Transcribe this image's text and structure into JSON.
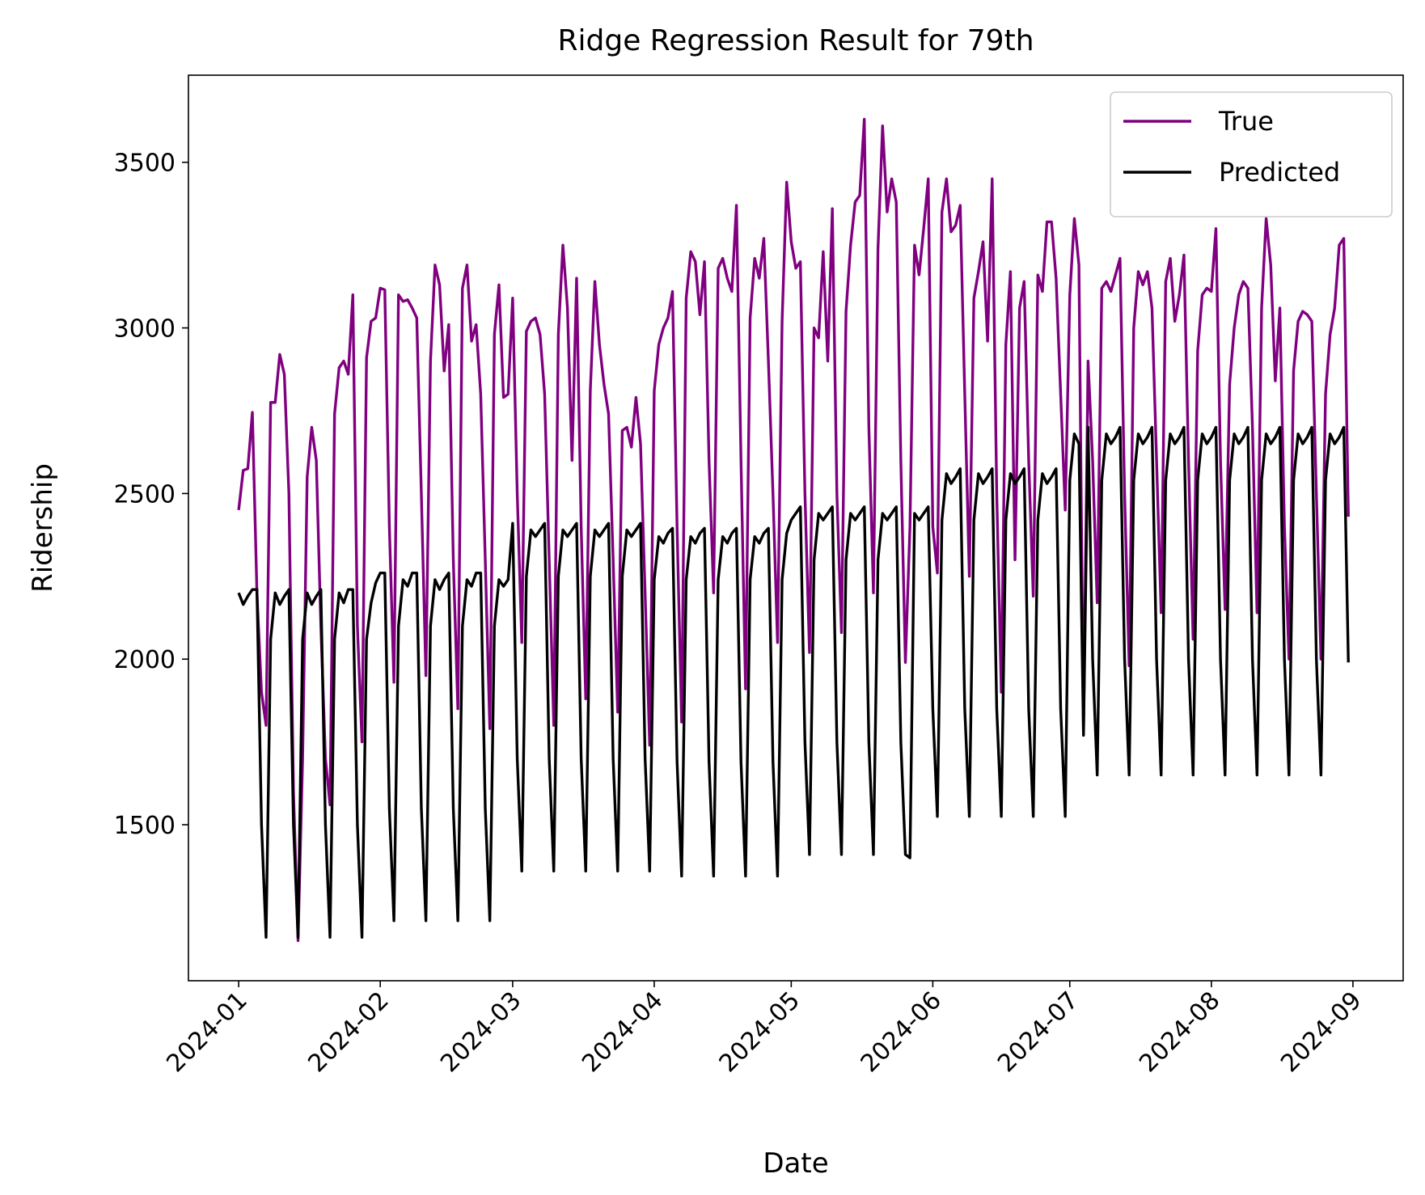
{
  "chart_data": {
    "type": "line",
    "title": "Ridge Regression Result for 79th",
    "x_label": "Date",
    "y_label": "Ridership",
    "x": [
      0,
      1,
      2,
      3,
      4,
      5,
      6,
      7,
      8,
      9,
      10,
      11,
      12,
      13,
      14,
      15,
      16,
      17,
      18,
      19,
      20,
      21,
      22,
      23,
      24,
      25,
      26,
      27,
      28,
      29,
      30,
      31,
      32,
      33,
      34,
      35,
      36,
      37,
      38,
      39,
      40,
      41,
      42,
      43,
      44,
      45,
      46,
      47,
      48,
      49,
      50,
      51,
      52,
      53,
      54,
      55,
      56,
      57,
      58,
      59,
      60,
      61,
      62,
      63,
      64,
      65,
      66,
      67,
      68,
      69,
      70,
      71,
      72,
      73,
      74,
      75,
      76,
      77,
      78,
      79,
      80,
      81,
      82,
      83,
      84,
      85,
      86,
      87,
      88,
      89,
      90,
      91,
      92,
      93,
      94,
      95,
      96,
      97,
      98,
      99,
      100,
      101,
      102,
      103,
      104,
      105,
      106,
      107,
      108,
      109,
      110,
      111,
      112,
      113,
      114,
      115,
      116,
      117,
      118,
      119,
      120,
      121,
      122,
      123,
      124,
      125,
      126,
      127,
      128,
      129,
      130,
      131,
      132,
      133,
      134,
      135,
      136,
      137,
      138,
      139,
      140,
      141,
      142,
      143,
      144,
      145,
      146,
      147,
      148,
      149,
      150,
      151,
      152,
      153,
      154,
      155,
      156,
      157,
      158,
      159,
      160,
      161,
      162,
      163,
      164,
      165,
      166,
      167,
      168,
      169,
      170,
      171,
      172,
      173,
      174,
      175,
      176,
      177,
      178,
      179,
      180,
      181,
      182,
      183,
      184,
      185,
      186,
      187,
      188,
      189,
      190,
      191,
      192,
      193,
      194,
      195,
      196,
      197,
      198,
      199,
      200,
      201,
      202,
      203,
      204,
      205,
      206,
      207,
      208,
      209,
      210,
      211,
      212,
      213,
      214,
      215,
      216,
      217,
      218,
      219,
      220,
      221,
      222,
      223,
      224,
      225,
      226,
      227,
      228,
      229,
      230,
      231,
      232,
      233,
      234,
      235,
      236,
      237,
      238,
      239,
      240,
      241,
      242,
      243
    ],
    "series": [
      {
        "name": "True",
        "color": "#800080",
        "values": [
          2450,
          2570,
          2575,
          2745,
          2200,
          1900,
          1800,
          2775,
          2775,
          2920,
          2860,
          2500,
          1600,
          1150,
          1700,
          2550,
          2700,
          2600,
          2100,
          1700,
          1560,
          2740,
          2880,
          2900,
          2860,
          3100,
          2100,
          1750,
          2910,
          3020,
          3030,
          3120,
          3115,
          2400,
          1930,
          3100,
          3080,
          3085,
          3060,
          3030,
          2500,
          1950,
          2900,
          3190,
          3130,
          2870,
          3010,
          2300,
          1850,
          3120,
          3190,
          2960,
          3010,
          2800,
          2300,
          1790,
          2980,
          3130,
          2790,
          2800,
          3090,
          2500,
          2050,
          2990,
          3020,
          3030,
          2980,
          2800,
          2300,
          1800,
          2980,
          3250,
          3060,
          2600,
          3150,
          2400,
          1880,
          2810,
          3140,
          2950,
          2830,
          2740,
          2300,
          1840,
          2690,
          2700,
          2640,
          2790,
          2650,
          2200,
          1740,
          2810,
          2950,
          3000,
          3030,
          3110,
          2400,
          1810,
          3090,
          3230,
          3200,
          3040,
          3200,
          2600,
          2200,
          3180,
          3210,
          3150,
          3110,
          3370,
          2600,
          1910,
          3030,
          3210,
          3150,
          3270,
          2900,
          2500,
          2050,
          3020,
          3440,
          3260,
          3180,
          3200,
          2500,
          2020,
          3000,
          2970,
          3230,
          2900,
          3360,
          2500,
          2080,
          3050,
          3250,
          3380,
          3400,
          3630,
          2700,
          2200,
          3240,
          3610,
          3350,
          3450,
          3380,
          2600,
          1990,
          2400,
          3250,
          3160,
          3300,
          3450,
          2400,
          2260,
          3350,
          3450,
          3290,
          3310,
          3370,
          2800,
          2250,
          3090,
          3170,
          3260,
          2960,
          3450,
          2500,
          1900,
          2950,
          3170,
          2300,
          3060,
          3140,
          2600,
          2190,
          3160,
          3110,
          3320,
          3320,
          3150,
          2800,
          2450,
          3100,
          3330,
          3190,
          1780,
          2900,
          2600,
          2170,
          3120,
          3140,
          3110,
          3160,
          3210,
          2500,
          1980,
          3000,
          3170,
          3130,
          3170,
          3060,
          2600,
          2140,
          3140,
          3210,
          3020,
          3100,
          3220,
          2600,
          2060,
          2930,
          3100,
          3120,
          3110,
          3300,
          2600,
          2150,
          2830,
          3000,
          3100,
          3140,
          3120,
          2700,
          2140,
          3060,
          3330,
          3190,
          2840,
          3060,
          2400,
          2000,
          2870,
          3020,
          3050,
          3040,
          3020,
          2500,
          2000,
          2800,
          2980,
          3060,
          3250,
          3270,
          2430
        ]
      },
      {
        "name": "Predicted",
        "color": "#000000",
        "values": [
          2200,
          2165,
          2190,
          2210,
          2210,
          1500,
          1160,
          2060,
          2200,
          2165,
          2190,
          2210,
          1500,
          1160,
          2060,
          2200,
          2165,
          2190,
          2210,
          1500,
          1160,
          2060,
          2200,
          2170,
          2210,
          2210,
          1500,
          1160,
          2060,
          2170,
          2230,
          2260,
          2260,
          1550,
          1210,
          2100,
          2240,
          2220,
          2260,
          2260,
          1550,
          1210,
          2100,
          2240,
          2210,
          2240,
          2260,
          1550,
          1210,
          2100,
          2240,
          2220,
          2260,
          2260,
          1550,
          1210,
          2100,
          2240,
          2220,
          2240,
          2410,
          1700,
          1360,
          2250,
          2390,
          2370,
          2390,
          2410,
          1700,
          1360,
          2250,
          2390,
          2370,
          2390,
          2410,
          1700,
          1360,
          2250,
          2390,
          2370,
          2390,
          2410,
          1700,
          1360,
          2250,
          2390,
          2370,
          2390,
          2410,
          1700,
          1360,
          2240,
          2370,
          2350,
          2380,
          2395,
          1690,
          1345,
          2240,
          2370,
          2350,
          2380,
          2395,
          1690,
          1345,
          2240,
          2370,
          2350,
          2380,
          2395,
          1690,
          1345,
          2240,
          2370,
          2350,
          2380,
          2395,
          1690,
          1345,
          2240,
          2380,
          2420,
          2440,
          2460,
          1750,
          1410,
          2300,
          2440,
          2420,
          2440,
          2460,
          1750,
          1410,
          2300,
          2440,
          2420,
          2440,
          2460,
          1750,
          1410,
          2300,
          2440,
          2420,
          2440,
          2460,
          1750,
          1410,
          1400,
          2440,
          2420,
          2440,
          2460,
          1850,
          1525,
          2420,
          2560,
          2530,
          2550,
          2575,
          1850,
          1525,
          2420,
          2560,
          2530,
          2550,
          2575,
          1850,
          1525,
          2420,
          2560,
          2530,
          2550,
          2575,
          1850,
          1525,
          2420,
          2560,
          2530,
          2550,
          2575,
          1850,
          1525,
          2540,
          2680,
          2650,
          1770,
          2700,
          2000,
          1650,
          2540,
          2680,
          2650,
          2670,
          2700,
          2000,
          1650,
          2540,
          2680,
          2650,
          2670,
          2700,
          2000,
          1650,
          2540,
          2680,
          2650,
          2670,
          2700,
          2000,
          1650,
          2540,
          2680,
          2650,
          2670,
          2700,
          2000,
          1650,
          2540,
          2680,
          2650,
          2670,
          2700,
          2000,
          1650,
          2540,
          2680,
          2650,
          2670,
          2700,
          2000,
          1650,
          2540,
          2680,
          2650,
          2670,
          2700,
          2000,
          1650,
          2540,
          2680,
          2650,
          2670,
          2700,
          1990
        ]
      }
    ],
    "xlim": [
      -11,
      255
    ],
    "xticks": [
      {
        "value": 0,
        "label": "2024-01"
      },
      {
        "value": 31,
        "label": "2024-02"
      },
      {
        "value": 60,
        "label": "2024-03"
      },
      {
        "value": 91,
        "label": "2024-04"
      },
      {
        "value": 121,
        "label": "2024-05"
      },
      {
        "value": 152,
        "label": "2024-06"
      },
      {
        "value": 182,
        "label": "2024-07"
      },
      {
        "value": 213,
        "label": "2024-08"
      },
      {
        "value": 244,
        "label": "2024-09"
      }
    ],
    "ylim": [
      1029,
      3763
    ],
    "yticks": [
      1500,
      2000,
      2500,
      3000,
      3500
    ],
    "grid": false,
    "legend": "upper right"
  }
}
